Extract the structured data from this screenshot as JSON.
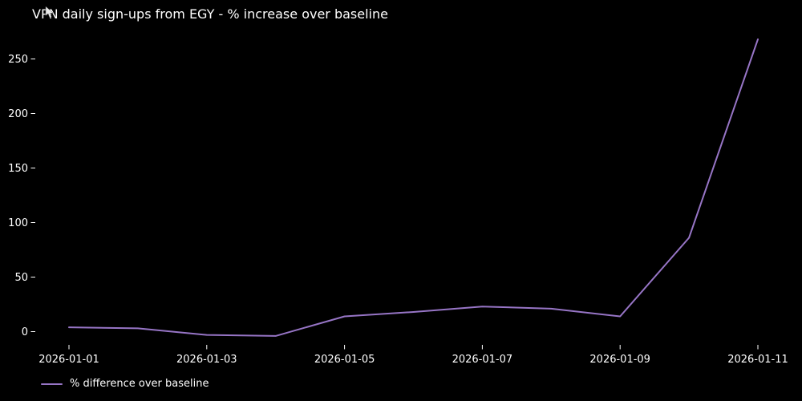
{
  "legend": {
    "label": "% difference over baseline"
  },
  "colors": {
    "background": "#000000",
    "text": "#ffffff",
    "line": "#9775c6"
  },
  "chart_data": {
    "type": "line",
    "title": "VPN daily sign-ups from EGY - % increase over baseline",
    "x": [
      "2026-01-01",
      "2026-01-02",
      "2026-01-03",
      "2026-01-04",
      "2026-01-05",
      "2026-01-06",
      "2026-01-07",
      "2026-01-08",
      "2026-01-09",
      "2026-01-10",
      "2026-01-11"
    ],
    "series": [
      {
        "name": "% difference over baseline",
        "values": [
          4,
          3,
          -3,
          -4,
          14,
          18,
          23,
          21,
          14,
          86,
          268
        ]
      }
    ],
    "xlabel": "",
    "ylabel": "",
    "ylim": [
      -12,
      273
    ],
    "yticks": [
      0,
      50,
      100,
      150,
      200,
      250
    ],
    "xtick_labels": [
      "2026-01-01",
      "2026-01-03",
      "2026-01-05",
      "2026-01-07",
      "2026-01-09",
      "2026-01-11"
    ],
    "xtick_indices": [
      0,
      2,
      4,
      6,
      8,
      10
    ],
    "grid": false,
    "legend_position": "below-axes-lower-left"
  }
}
